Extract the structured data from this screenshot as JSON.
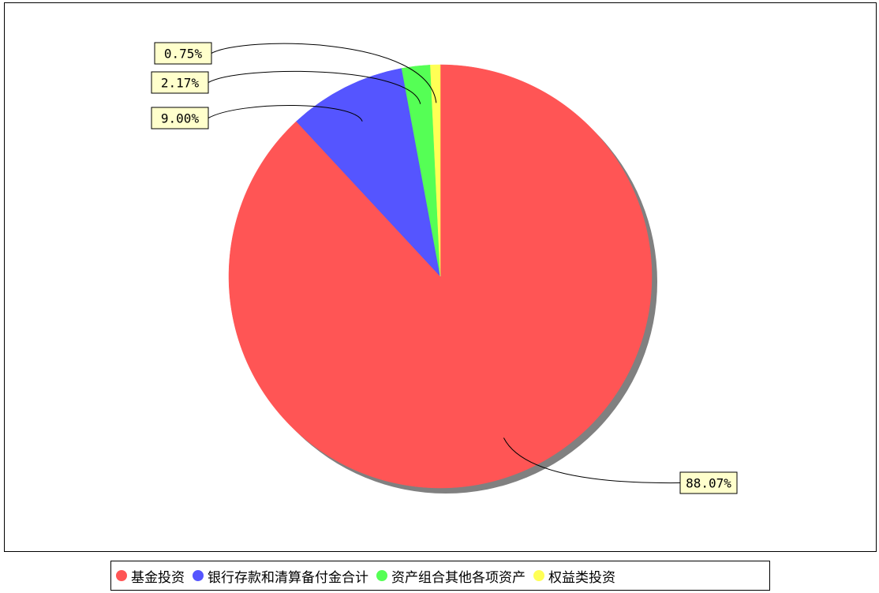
{
  "chart_data": {
    "type": "pie",
    "title": "",
    "categories": [
      "基金投资",
      "银行存款和清算备付金合计",
      "资产组合其他各项资产",
      "权益类投资"
    ],
    "values": [
      88.07,
      9.0,
      2.17,
      0.75
    ],
    "value_labels": [
      "88.07%",
      "9.00%",
      "2.17%",
      "0.75%"
    ],
    "colors": [
      "#ff5555",
      "#5555ff",
      "#55ff55",
      "#ffff55"
    ],
    "label_box_color": "#ffffcc",
    "shadow_color": "#808080",
    "start_angle": "12 o'clock",
    "direction": "clockwise",
    "legend_position": "bottom",
    "grid": false
  }
}
